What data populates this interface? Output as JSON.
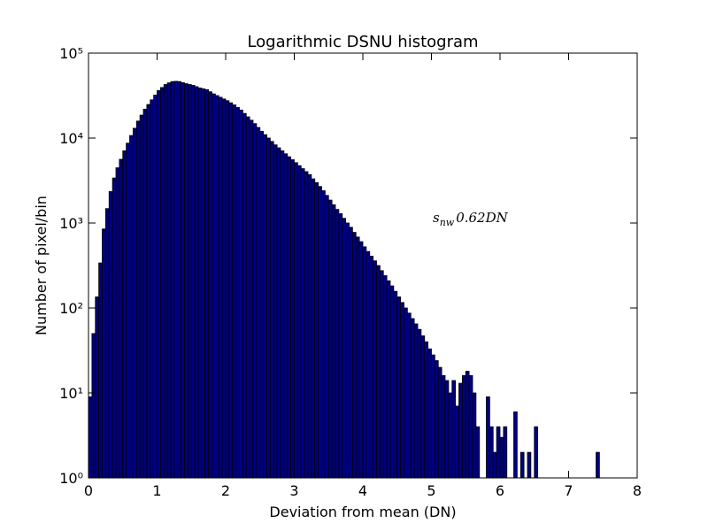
{
  "chart_data": {
    "type": "histogram",
    "title": "Logarithmic DSNU histogram",
    "x_label": "Deviation from mean (DN)",
    "y_label": "Number of pixel/bin",
    "annotation": {
      "base": "s",
      "sub": "nw",
      "rest": "0.62DN"
    },
    "color": "#000080",
    "edge_color": "#000000",
    "log_y": true,
    "xlim": [
      0,
      8
    ],
    "xticks": [
      0,
      1,
      2,
      3,
      4,
      5,
      6,
      7,
      8
    ],
    "ylim": [
      1,
      100000
    ],
    "yticks": [
      {
        "value": 1,
        "label": "10⁰"
      },
      {
        "value": 10,
        "label": "10¹"
      },
      {
        "value": 100,
        "label": "10²"
      },
      {
        "value": 1000,
        "label": "10³"
      },
      {
        "value": 10000,
        "label": "10⁴"
      },
      {
        "value": 100000,
        "label": "10⁵"
      }
    ],
    "bins": [
      0,
      0.05,
      0.1,
      0.15,
      0.2,
      0.25,
      0.3,
      0.35,
      0.4,
      0.45,
      0.5,
      0.55,
      0.6,
      0.65,
      0.7,
      0.75,
      0.8,
      0.85,
      0.9,
      0.95,
      1,
      1.05,
      1.1,
      1.15,
      1.2,
      1.25,
      1.3,
      1.35,
      1.4,
      1.45,
      1.5,
      1.55,
      1.6,
      1.65,
      1.7,
      1.75,
      1.8,
      1.85,
      1.9,
      1.95,
      2,
      2.05,
      2.1,
      2.15,
      2.2,
      2.25,
      2.3,
      2.35,
      2.4,
      2.45,
      2.5,
      2.55,
      2.6,
      2.65,
      2.7,
      2.75,
      2.8,
      2.85,
      2.9,
      2.95,
      3,
      3.05,
      3.1,
      3.15,
      3.2,
      3.25,
      3.3,
      3.35,
      3.4,
      3.45,
      3.5,
      3.55,
      3.6,
      3.65,
      3.7,
      3.75,
      3.8,
      3.85,
      3.9,
      3.95,
      4,
      4.05,
      4.1,
      4.15,
      4.2,
      4.25,
      4.3,
      4.35,
      4.4,
      4.45,
      4.5,
      4.55,
      4.6,
      4.65,
      4.7,
      4.75,
      4.8,
      4.85,
      4.9,
      4.95,
      5,
      5.05,
      5.1,
      5.15,
      5.2,
      5.25,
      5.3,
      5.35,
      5.4,
      5.45,
      5.5,
      5.55,
      5.6,
      5.65,
      5.7,
      5.75,
      5.8,
      5.85,
      5.9,
      5.95,
      6,
      6.05,
      6.1,
      6.15,
      6.2,
      6.25,
      6.3,
      6.35,
      6.4,
      6.45,
      6.5,
      6.55,
      6.6,
      6.65,
      6.7,
      6.75,
      6.8,
      6.85,
      6.9,
      6.95,
      7,
      7.05,
      7.1,
      7.15,
      7.2,
      7.25,
      7.3,
      7.35,
      7.4,
      7.45
    ],
    "values": [
      9,
      50,
      135,
      339,
      851,
      1479,
      2344,
      3388,
      4467,
      5623,
      7079,
      8710,
      10715,
      13032,
      15849,
      18621,
      21878,
      24831,
      28184,
      31989,
      36308,
      39355,
      42658,
      44668,
      46238,
      46559,
      46238,
      44875,
      43652,
      42658,
      41687,
      40272,
      38905,
      38019,
      37154,
      35075,
      33113,
      31623,
      30200,
      28840,
      27542,
      26002,
      24547,
      22909,
      21380,
      19498,
      17783,
      16218,
      14791,
      13335,
      12023,
      10965,
      10000,
      9120,
      8318,
      7674,
      7079,
      6531,
      6026,
      5559,
      5129,
      4732,
      4365,
      4027,
      3715,
      3311,
      2985,
      2692,
      2399,
      2113,
      1862,
      1641,
      1445,
      1288,
      1135,
      1000,
      891,
      776,
      684,
      603,
      525,
      462,
      407,
      359,
      316,
      275,
      240,
      209,
      182,
      157,
      135,
      116,
      100,
      87,
      75,
      65,
      56,
      47,
      40,
      33,
      28,
      24,
      20,
      16,
      14,
      10,
      14,
      7,
      13,
      16,
      18,
      16,
      10,
      4,
      0,
      0,
      9,
      4,
      2,
      4,
      3,
      4,
      1,
      0,
      6,
      0,
      2,
      0,
      2,
      0,
      4,
      0,
      0,
      0,
      0,
      0,
      0,
      0,
      0,
      0,
      0,
      0,
      0,
      0,
      0,
      0,
      0,
      0,
      2
    ]
  }
}
